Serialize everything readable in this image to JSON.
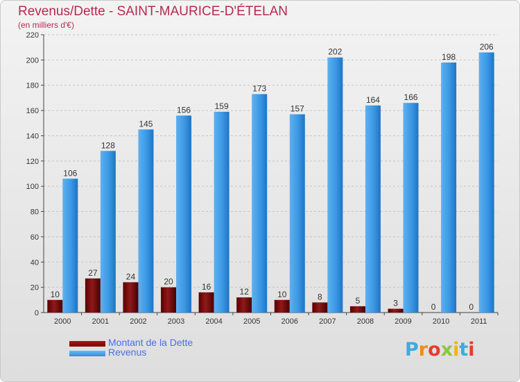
{
  "header": {
    "title": "Revenus/Dette - SAINT-MAURICE-D'ÉTELAN",
    "subtitle": "(en milliers d'€)"
  },
  "legend": [
    {
      "label": "Montant de la Dette",
      "color": "#800000"
    },
    {
      "label": "Revenus",
      "color": "#2e8fe0"
    }
  ],
  "logo": {
    "text": "Proxiti"
  },
  "chart_data": {
    "type": "bar",
    "categories": [
      "2000",
      "2001",
      "2002",
      "2003",
      "2004",
      "2005",
      "2006",
      "2007",
      "2008",
      "2009",
      "2010",
      "2011"
    ],
    "series": [
      {
        "name": "Montant de la Dette",
        "color": "#800000",
        "values": [
          10,
          27,
          24,
          20,
          16,
          12,
          10,
          8,
          5,
          3,
          0,
          0
        ]
      },
      {
        "name": "Revenus",
        "color": "#2e8fe0",
        "values": [
          106,
          128,
          145,
          156,
          159,
          173,
          157,
          202,
          164,
          166,
          198,
          206
        ]
      }
    ],
    "ylim": [
      0,
      220
    ],
    "yticks": [
      0,
      20,
      40,
      60,
      80,
      100,
      120,
      140,
      160,
      180,
      200,
      220
    ],
    "grid": true,
    "legend_position": "bottom-left"
  }
}
